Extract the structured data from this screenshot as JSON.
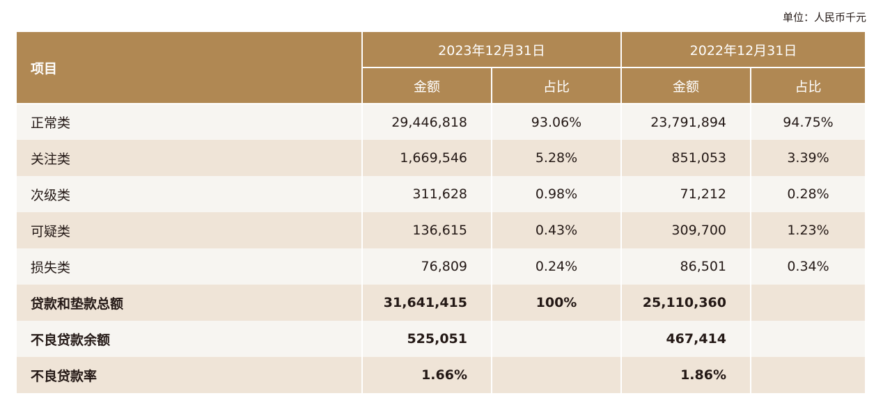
{
  "unit": "单位：人民币千元",
  "header": {
    "item": "项目",
    "period_2023": "2023年12月31日",
    "period_2022": "2022年12月31日",
    "amount": "金额",
    "ratio": "占比"
  },
  "rows": [
    {
      "label": "正常类",
      "amt_2023": "29,446,818",
      "pct_2023": "93.06%",
      "amt_2022": "23,791,894",
      "pct_2022": "94.75%"
    },
    {
      "label": "关注类",
      "amt_2023": "1,669,546",
      "pct_2023": "5.28%",
      "amt_2022": "851,053",
      "pct_2022": "3.39%"
    },
    {
      "label": "次级类",
      "amt_2023": "311,628",
      "pct_2023": "0.98%",
      "amt_2022": "71,212",
      "pct_2022": "0.28%"
    },
    {
      "label": "可疑类",
      "amt_2023": "136,615",
      "pct_2023": "0.43%",
      "amt_2022": "309,700",
      "pct_2022": "1.23%"
    },
    {
      "label": "损失类",
      "amt_2023": "76,809",
      "pct_2023": "0.24%",
      "amt_2022": "86,501",
      "pct_2022": "0.34%"
    },
    {
      "label": "贷款和垫款总额",
      "amt_2023": "31,641,415",
      "pct_2023": "100%",
      "amt_2022": "25,110,360",
      "pct_2022": ""
    },
    {
      "label": "不良贷款余额",
      "amt_2023": "525,051",
      "pct_2023": "",
      "amt_2022": "467,414",
      "pct_2022": ""
    },
    {
      "label": "不良贷款率",
      "amt_2023": "1.66%",
      "pct_2023": "",
      "amt_2022": "1.86%",
      "pct_2022": ""
    }
  ]
}
